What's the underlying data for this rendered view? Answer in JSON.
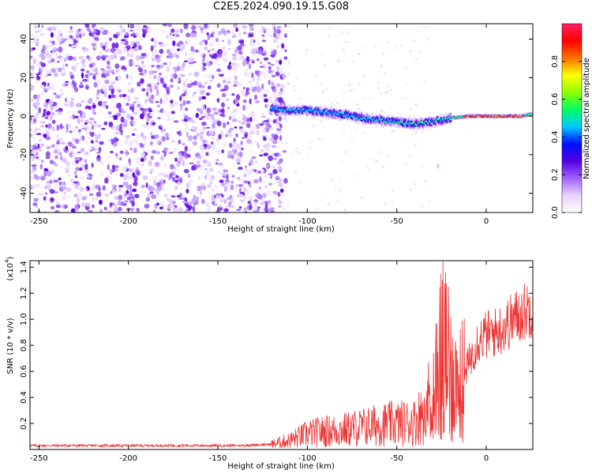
{
  "title": "C2E5.2024.090.19.15.G08",
  "chart_data": [
    {
      "type": "heatmap",
      "xlabel": "Height of straight line (km)",
      "ylabel": "Frequency (Hz)",
      "xlim": [
        -255,
        26
      ],
      "ylim": [
        -50,
        48
      ],
      "xticks": [
        -250,
        -200,
        -150,
        -100,
        -50,
        0
      ],
      "yticks": [
        -40,
        -20,
        0,
        20,
        40
      ],
      "colorbar": {
        "label": "Normalized spectral amplitude",
        "range": [
          0,
          1
        ],
        "ticks": [
          "0.0",
          "0.2",
          "0.4",
          "0.6",
          "0.8"
        ],
        "tick_values": [
          0,
          0.2,
          0.4,
          0.6,
          0.8
        ],
        "colors": [
          "#ffffff",
          "#e8d0ff",
          "#a060ff",
          "#5000e0",
          "#0010ff",
          "#00c8ff",
          "#00ff60",
          "#90ff00",
          "#ffff00",
          "#ff7000",
          "#ff0000",
          "#ff2060"
        ]
      },
      "signal_track": [
        {
          "x": -120,
          "y": 4,
          "amp": 0.25
        },
        {
          "x": -110,
          "y": 3,
          "amp": 0.35
        },
        {
          "x": -100,
          "y": 3,
          "amp": 0.4
        },
        {
          "x": -90,
          "y": 2,
          "amp": 0.45
        },
        {
          "x": -80,
          "y": 1,
          "amp": 0.5
        },
        {
          "x": -70,
          "y": -1,
          "amp": 0.5
        },
        {
          "x": -60,
          "y": -2,
          "amp": 0.5
        },
        {
          "x": -50,
          "y": -3,
          "amp": 0.55
        },
        {
          "x": -40,
          "y": -4,
          "amp": 0.55
        },
        {
          "x": -30,
          "y": -3,
          "amp": 0.6
        },
        {
          "x": -20,
          "y": -1,
          "amp": 0.65
        },
        {
          "x": -10,
          "y": 0,
          "amp": 0.85
        },
        {
          "x": 0,
          "y": 0,
          "amp": 0.9
        },
        {
          "x": 10,
          "y": 0,
          "amp": 0.85
        },
        {
          "x": 20,
          "y": 0,
          "amp": 0.85
        },
        {
          "x": 25,
          "y": 1,
          "amp": 0.6
        }
      ],
      "noise_region_xmax": -120
    },
    {
      "type": "line",
      "xlabel": "Height of straight line (km)",
      "ylabel": "SNR (10 * v/v)",
      "scale_label": "(x10",
      "scale_exponent": "4",
      "scale_suffix": ")",
      "xlim": [
        -255,
        26
      ],
      "ylim": [
        0,
        1.45
      ],
      "xticks": [
        -250,
        -200,
        -150,
        -100,
        -50,
        0
      ],
      "yticks": [
        "0.2",
        "0.4",
        "0.6",
        "0.8",
        "1.0",
        "1.2",
        "1.4"
      ],
      "ytick_values": [
        0.2,
        0.4,
        0.6,
        0.8,
        1.0,
        1.2,
        1.4
      ],
      "line_color": "#ee3333",
      "series": [
        {
          "x": [
            -255,
            -230,
            -200,
            -170,
            -140,
            -120,
            -110,
            -100,
            -90,
            -80,
            -70,
            -60,
            -50,
            -40,
            -35,
            -30,
            -27,
            -24,
            -22,
            -20,
            -18,
            -15,
            -12,
            -10,
            -5,
            0,
            5,
            10,
            15,
            20,
            26
          ],
          "y": [
            0.03,
            0.03,
            0.03,
            0.03,
            0.03,
            0.04,
            0.07,
            0.12,
            0.14,
            0.15,
            0.17,
            0.19,
            0.2,
            0.21,
            0.3,
            0.45,
            0.65,
            0.9,
            0.72,
            0.62,
            0.55,
            0.5,
            0.58,
            0.66,
            0.84,
            0.88,
            0.9,
            0.94,
            1.0,
            1.05,
            1.1
          ]
        }
      ]
    }
  ]
}
